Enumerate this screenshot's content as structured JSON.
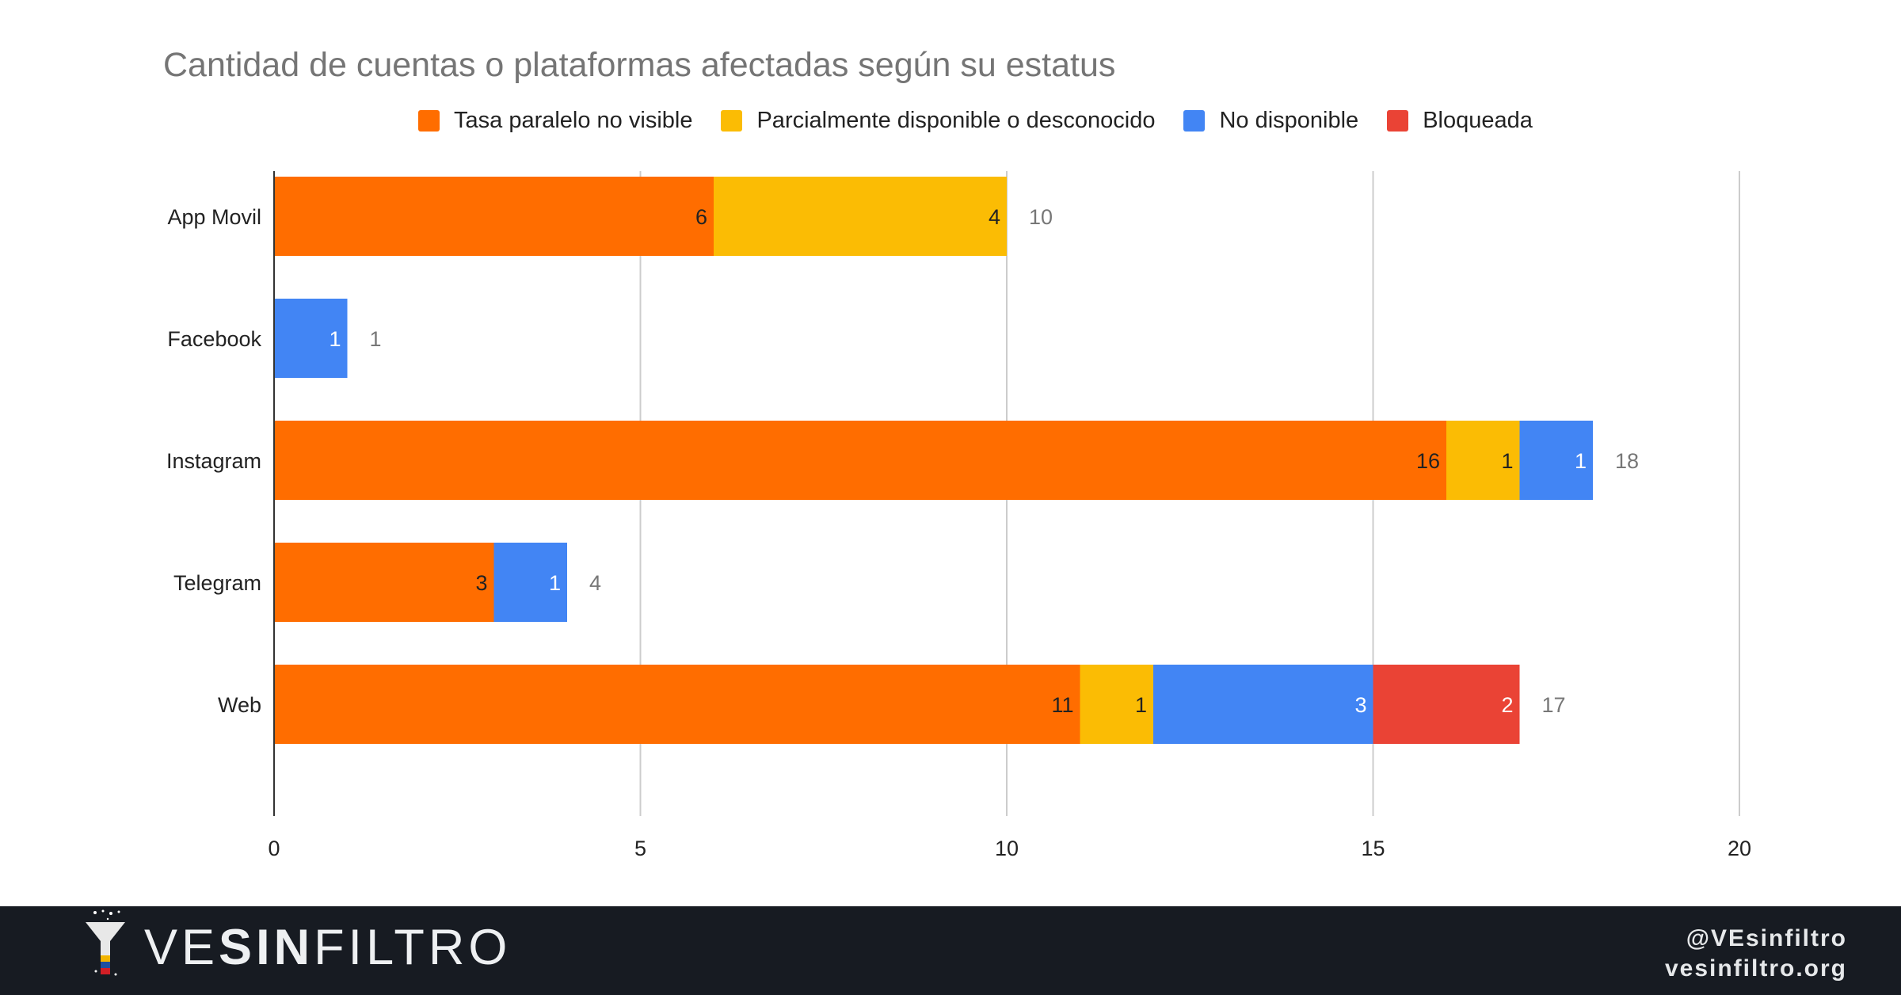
{
  "chart_data": {
    "type": "bar",
    "orientation": "horizontal",
    "stacked": true,
    "title": "Cantidad de cuentas o plataformas afectadas según su estatus",
    "categories": [
      "App Movil",
      "Facebook",
      "Instagram",
      "Telegram",
      "Web"
    ],
    "series": [
      {
        "name": "Tasa paralelo no visible",
        "color": "#ff6d00",
        "values": [
          6,
          0,
          16,
          3,
          11
        ]
      },
      {
        "name": "Parcialmente disponible o desconocido",
        "color": "#fbbc04",
        "values": [
          4,
          0,
          1,
          0,
          1
        ]
      },
      {
        "name": "No disponible",
        "color": "#4285f4",
        "values": [
          0,
          1,
          1,
          1,
          3
        ]
      },
      {
        "name": "Bloqueada",
        "color": "#ea4335",
        "values": [
          0,
          0,
          0,
          0,
          2
        ]
      }
    ],
    "totals": [
      10,
      1,
      18,
      4,
      17
    ],
    "xlim": [
      0,
      20
    ],
    "xticks": [
      0,
      5,
      10,
      15,
      20
    ],
    "grid": true,
    "legend_position": "top"
  },
  "footer": {
    "brand_light": "VE",
    "brand_bold": "SIN",
    "brand_rest": "FILTRO",
    "handle": "@VEsinfiltro",
    "website": "vesinfiltro.org"
  }
}
